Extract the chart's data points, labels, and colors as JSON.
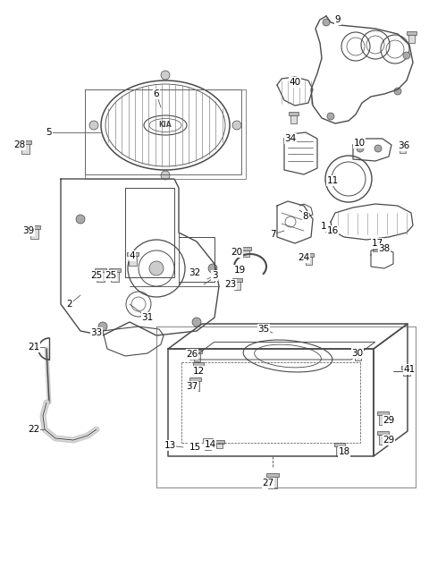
{
  "bg_color": "#ffffff",
  "line_color": "#4a4a4a",
  "fig_width": 4.8,
  "fig_height": 6.54,
  "dpi": 100,
  "xlim": [
    0,
    480
  ],
  "ylim": [
    0,
    654
  ]
}
